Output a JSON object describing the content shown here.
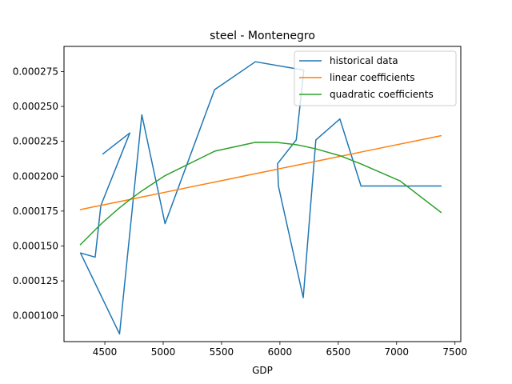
{
  "chart_data": {
    "type": "line",
    "title": "steel - Montenegro",
    "xlabel": "GDP",
    "ylabel": "",
    "xlim": [
      4150,
      7550
    ],
    "ylim": [
      8.15e-05,
      0.000293
    ],
    "x_ticks": [
      4500,
      5000,
      5500,
      6000,
      6500,
      7000,
      7500
    ],
    "x_tick_labels": [
      "4500",
      "5000",
      "5500",
      "6000",
      "6500",
      "7000",
      "7500"
    ],
    "y_ticks": [
      0.0001,
      0.000125,
      0.00015,
      0.000175,
      0.0002,
      0.000225,
      0.00025,
      0.000275
    ],
    "y_tick_labels": [
      "0.000100",
      "0.000125",
      "0.000150",
      "0.000175",
      "0.000200",
      "0.000225",
      "0.000250",
      "0.000275"
    ],
    "grid": false,
    "legend_position": "top-right",
    "series": [
      {
        "name": "historical data",
        "color": "#1f77b4",
        "x": [
          4484,
          4714,
          4466,
          4417,
          4291,
          4626,
          4817,
          5016,
          5440,
          5790,
          6205,
          6140,
          5980,
          5987,
          6200,
          6308,
          6514,
          6695,
          7380
        ],
        "y": [
          0.000216,
          0.000231,
          0.000179,
          0.000142,
          0.000145,
          8.7e-05,
          0.000244,
          0.000166,
          0.000262,
          0.000282,
          0.000276,
          0.000226,
          0.000209,
          0.000193,
          0.000113,
          0.000226,
          0.000241,
          0.000193,
          0.000193
        ]
      },
      {
        "name": "linear coefficients",
        "color": "#ff7f0e",
        "x": [
          4291,
          4417,
          4466,
          4484,
          4626,
          4714,
          4817,
          5016,
          5440,
          5790,
          5980,
          5987,
          6140,
          6200,
          6205,
          6308,
          6514,
          6695,
          7380
        ],
        "y": [
          0.0001761,
          0.0001783,
          0.0001791,
          0.0001794,
          0.0001818,
          0.0001833,
          0.0001851,
          0.0001885,
          0.0001958,
          0.0002018,
          0.000205,
          0.0002052,
          0.0002078,
          0.0002088,
          0.0002089,
          0.0002107,
          0.0002142,
          0.0002173,
          0.000229
        ]
      },
      {
        "name": "quadratic coefficients",
        "color": "#2ca02c",
        "x": [
          4291,
          4417,
          4466,
          4484,
          4626,
          4714,
          4817,
          5016,
          5440,
          5790,
          5980,
          5987,
          6140,
          6200,
          6205,
          6308,
          6514,
          6695,
          7030,
          7380
        ],
        "y": [
          0.000151,
          0.0001616,
          0.0001656,
          0.000167,
          0.0001774,
          0.0001832,
          0.0001895,
          0.0002004,
          0.0002179,
          0.0002243,
          0.0002242,
          0.0002241,
          0.0002226,
          0.0002216,
          0.0002215,
          0.0002196,
          0.0002147,
          0.0002088,
          0.0001966,
          0.0001741
        ]
      }
    ]
  }
}
